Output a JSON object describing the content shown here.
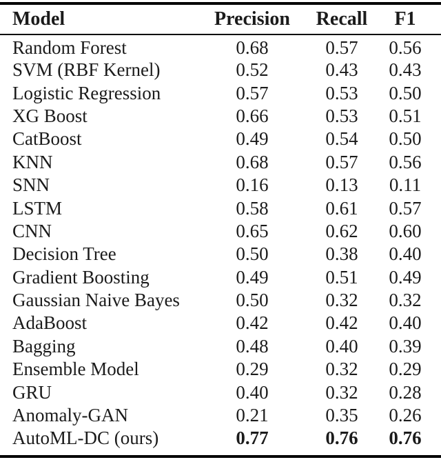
{
  "chart_data": {
    "type": "table",
    "title": "",
    "columns": [
      "Model",
      "Precision",
      "Recall",
      "F1"
    ],
    "rows": [
      [
        "Random Forest",
        "0.68",
        "0.57",
        "0.56"
      ],
      [
        "SVM (RBF Kernel)",
        "0.52",
        "0.43",
        "0.43"
      ],
      [
        "Logistic Regression",
        "0.57",
        "0.53",
        "0.50"
      ],
      [
        "XG Boost",
        "0.66",
        "0.53",
        "0.51"
      ],
      [
        "CatBoost",
        "0.49",
        "0.54",
        "0.50"
      ],
      [
        "KNN",
        "0.68",
        "0.57",
        "0.56"
      ],
      [
        "SNN",
        "0.16",
        "0.13",
        "0.11"
      ],
      [
        "LSTM",
        "0.58",
        "0.61",
        "0.57"
      ],
      [
        "CNN",
        "0.65",
        "0.62",
        "0.60"
      ],
      [
        "Decision Tree",
        "0.50",
        "0.38",
        "0.40"
      ],
      [
        "Gradient Boosting",
        "0.49",
        "0.51",
        "0.49"
      ],
      [
        "Gaussian Naive Bayes",
        "0.50",
        "0.32",
        "0.32"
      ],
      [
        "AdaBoost",
        "0.42",
        "0.42",
        "0.40"
      ],
      [
        "Bagging",
        "0.48",
        "0.40",
        "0.39"
      ],
      [
        "Ensemble Model",
        "0.29",
        "0.32",
        "0.29"
      ],
      [
        "GRU",
        "0.40",
        "0.32",
        "0.28"
      ],
      [
        "Anomaly-GAN",
        "0.21",
        "0.35",
        "0.26"
      ],
      [
        "AutoML-DC (ours)",
        "0.77",
        "0.76",
        "0.76"
      ]
    ],
    "bold_row_index": 17,
    "style": {
      "rule_color": "#000000",
      "text_color": "#1b1b1b",
      "background": "#ffffff"
    }
  }
}
